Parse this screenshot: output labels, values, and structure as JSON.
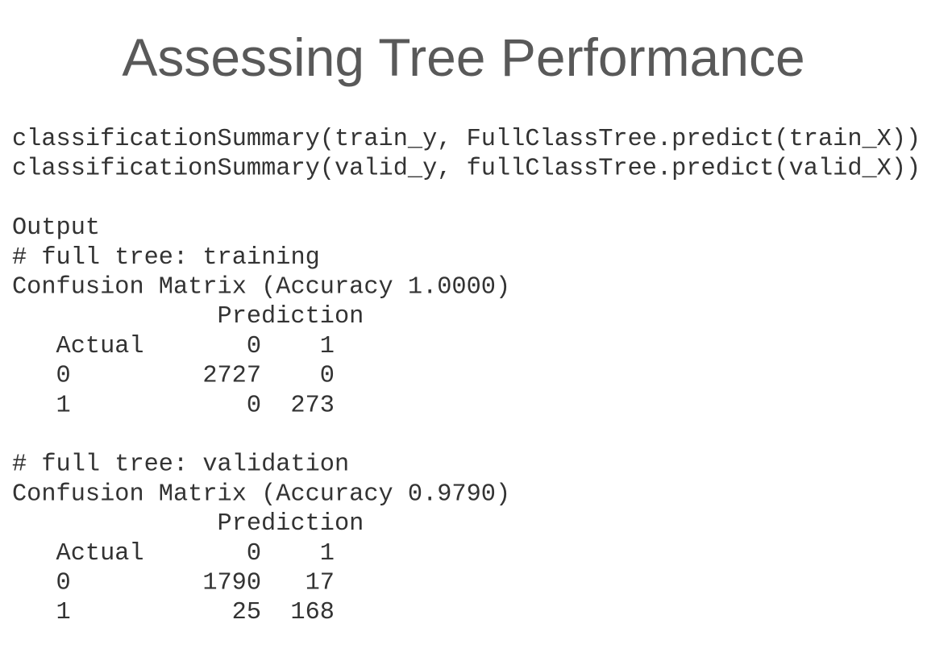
{
  "title": "Assessing Tree Performance",
  "code": [
    "classificationSummary(train_y, FullClassTree.predict(train_X))",
    "classificationSummary(valid_y, fullClassTree.predict(valid_X))"
  ],
  "output_label": "Output",
  "sections": [
    {
      "comment": "# full tree: training",
      "matrix_title": "Confusion Matrix (Accuracy 1.0000)",
      "prediction_label": "Prediction",
      "actual_label": "Actual",
      "columns": [
        "0",
        "1"
      ],
      "rows": [
        {
          "label": "0",
          "values": [
            "2727",
            "0"
          ]
        },
        {
          "label": "1",
          "values": [
            "0",
            "273"
          ]
        }
      ]
    },
    {
      "comment": "# full tree: validation",
      "matrix_title": "Confusion Matrix (Accuracy 0.9790)",
      "prediction_label": "Prediction",
      "actual_label": "Actual",
      "columns": [
        "0",
        "1"
      ],
      "rows": [
        {
          "label": "0",
          "values": [
            "1790",
            "17"
          ]
        },
        {
          "label": "1",
          "values": [
            "25",
            "168"
          ]
        }
      ]
    }
  ]
}
